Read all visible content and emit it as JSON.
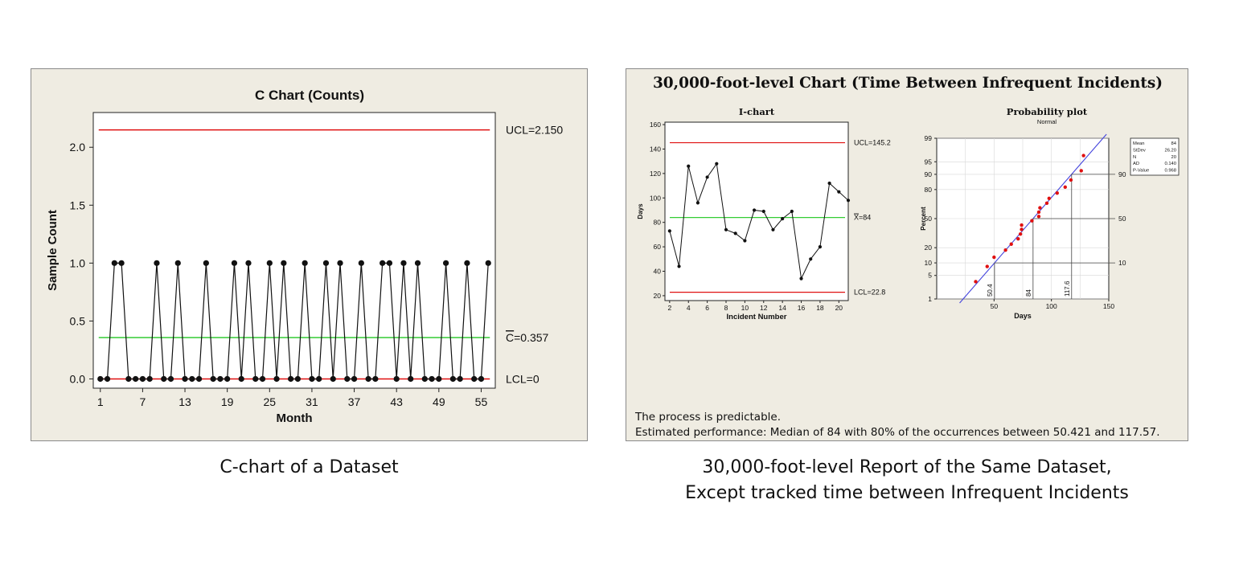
{
  "chart_data": [
    {
      "type": "line",
      "title": "C Chart (Counts)",
      "xlabel": "Month",
      "ylabel": "Sample Count",
      "xticks": [
        1,
        7,
        13,
        19,
        25,
        31,
        37,
        43,
        49,
        55
      ],
      "yticks": [
        "0.0",
        "0.5",
        "1.0",
        "1.5",
        "2.0"
      ],
      "xlim": [
        0,
        57
      ],
      "ylim": [
        -0.08,
        2.3
      ],
      "x": [
        1,
        2,
        3,
        4,
        5,
        6,
        7,
        8,
        9,
        10,
        11,
        12,
        13,
        14,
        15,
        16,
        17,
        18,
        19,
        20,
        21,
        22,
        23,
        24,
        25,
        26,
        27,
        28,
        29,
        30,
        31,
        32,
        33,
        34,
        35,
        36,
        37,
        38,
        39,
        40,
        41,
        42,
        43,
        44,
        45,
        46,
        47,
        48,
        49,
        50,
        51,
        52,
        53,
        54,
        55,
        56
      ],
      "values": [
        0,
        0,
        1,
        1,
        0,
        0,
        0,
        0,
        1,
        0,
        0,
        1,
        0,
        0,
        0,
        1,
        0,
        0,
        0,
        1,
        0,
        1,
        0,
        0,
        1,
        0,
        1,
        0,
        0,
        1,
        0,
        0,
        1,
        0,
        1,
        0,
        0,
        1,
        0,
        0,
        1,
        1,
        0,
        1,
        0,
        1,
        0,
        0,
        0,
        1,
        0,
        0,
        1,
        0,
        0,
        1
      ],
      "control_lines": [
        {
          "label": "UCL=2.150",
          "value": 2.15,
          "color": "#e01010"
        },
        {
          "label": "C=0.357",
          "bar_symbol": "C",
          "value": 0.357,
          "color": "#33cc33"
        },
        {
          "label": "LCL=0",
          "value": 0,
          "color": "#e01010"
        }
      ],
      "grid": false
    },
    {
      "type": "line",
      "title": "I-chart",
      "xlabel": "Incident Number",
      "ylabel": "Days",
      "xticks": [
        2,
        4,
        6,
        8,
        10,
        12,
        14,
        16,
        18,
        20
      ],
      "yticks": [
        20,
        40,
        60,
        80,
        100,
        120,
        140,
        160
      ],
      "xlim": [
        1.5,
        21
      ],
      "ylim": [
        16,
        162
      ],
      "x": [
        2,
        3,
        4,
        5,
        6,
        7,
        8,
        9,
        10,
        11,
        12,
        13,
        14,
        15,
        16,
        17,
        18,
        19,
        20,
        21
      ],
      "values": [
        73,
        44,
        126,
        96,
        117,
        128,
        74,
        71,
        65,
        90,
        89,
        74,
        83,
        89,
        34,
        50,
        60,
        112,
        105,
        98
      ],
      "control_lines": [
        {
          "label": "UCL=145.2",
          "value": 145.2,
          "color": "#e01010"
        },
        {
          "label": "X=84",
          "bar_symbol": "X",
          "value": 84,
          "color": "#33cc33"
        },
        {
          "label": "LCL=22.8",
          "value": 22.8,
          "color": "#e01010"
        }
      ],
      "grid": false
    },
    {
      "type": "scatter",
      "title": "Probability plot",
      "subtitle": "Normal",
      "xlabel": "Days",
      "ylabel": "Percent",
      "xticks": [
        50,
        100,
        150
      ],
      "yticks": [
        1,
        5,
        10,
        20,
        50,
        80,
        90,
        95,
        99
      ],
      "xlim": [
        0,
        150
      ],
      "ylim": [
        1,
        99
      ],
      "x": [
        34,
        44,
        50,
        60,
        65,
        71,
        73,
        74,
        74,
        83,
        89,
        89,
        90,
        96,
        98,
        105,
        112,
        117,
        126,
        128
      ],
      "values": [
        3.4,
        8.3,
        13.2,
        18.1,
        23.0,
        27.9,
        32.8,
        37.7,
        42.6,
        47.5,
        52.5,
        57.4,
        62.3,
        67.2,
        72.1,
        77.0,
        81.9,
        86.8,
        91.7,
        96.6
      ],
      "fit_line": {
        "x": [
          20,
          148
        ],
        "color": "#4444dd"
      },
      "reference_lines": [
        {
          "percent": 10,
          "days": "50.4",
          "right_label": "10"
        },
        {
          "percent": 50,
          "days": "84",
          "right_label": "50"
        },
        {
          "percent": 90,
          "days": "117.6",
          "right_label": "90"
        }
      ],
      "stats_box": [
        {
          "key": "Mean",
          "value": "84"
        },
        {
          "key": "StDev",
          "value": "26.20"
        },
        {
          "key": "N",
          "value": "20"
        },
        {
          "key": "AD",
          "value": "0.140"
        },
        {
          "key": "P-Value",
          "value": "0.968"
        }
      ],
      "point_color": "#e01010"
    }
  ],
  "right_panel": {
    "title": "30,000-foot-level Chart (Time Between Infrequent Incidents)",
    "note_line1": "The process is predictable.",
    "note_line2": "Estimated performance: Median of 84 with 80% of the occurrences between 50.421 and 117.57."
  },
  "captions": {
    "left": "C-chart of a Dataset",
    "right_line1": "30,000-foot-level Report of the Same Dataset,",
    "right_line2": "Except tracked time between Infrequent Incidents"
  }
}
